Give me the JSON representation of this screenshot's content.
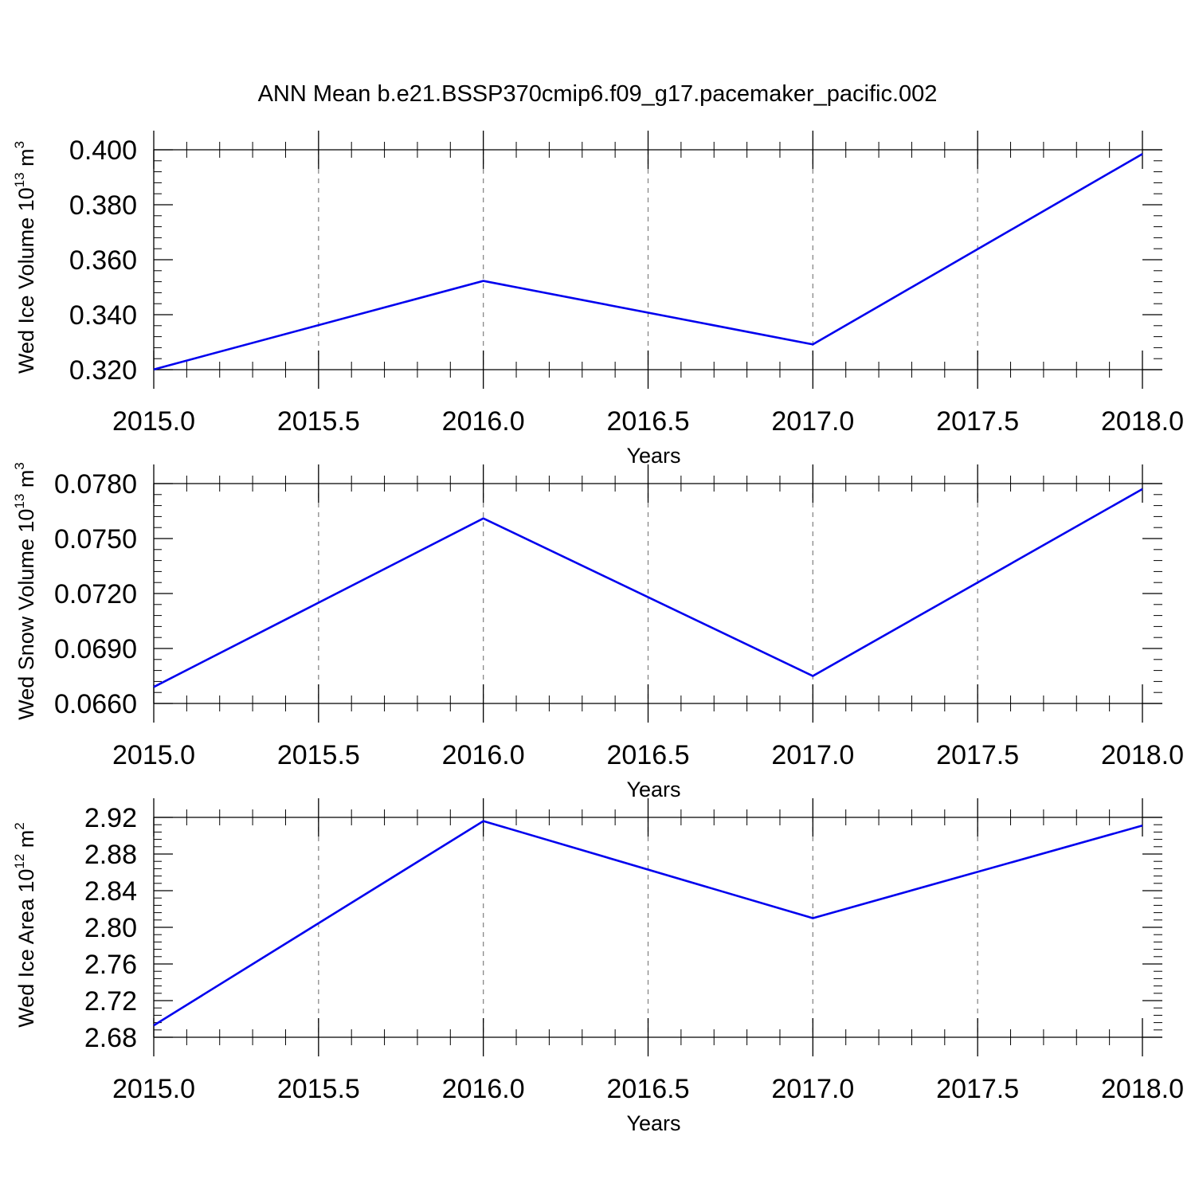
{
  "figure": {
    "title": "ANN Mean b.e21.BSSP370cmip6.f09_g17.pacemaker_pacific.002"
  },
  "chart_data": [
    {
      "type": "line",
      "title": "",
      "xlabel": "Years",
      "ylabel": {
        "text": "Wed Ice Volume 10",
        "exp": "13",
        "unit": " m",
        "unit_exp": "3"
      },
      "xlim": [
        2015.0,
        2018.0
      ],
      "ylim": [
        0.32,
        0.4
      ],
      "xticks": [
        2015.0,
        2015.5,
        2016.0,
        2016.5,
        2017.0,
        2017.5,
        2018.0
      ],
      "xtick_labels": [
        "2015.0",
        "2015.5",
        "2016.0",
        "2016.5",
        "2017.0",
        "2017.5",
        "2018.0"
      ],
      "yticks": [
        0.32,
        0.34,
        0.36,
        0.38,
        0.4
      ],
      "ytick_labels": [
        "0.320",
        "0.340",
        "0.360",
        "0.380",
        "0.400"
      ],
      "y_minor_step": 0.004,
      "grid": "vertical dashed",
      "series": [
        {
          "color": "#0000ee",
          "x": [
            2015,
            2016,
            2017,
            2018
          ],
          "y": [
            0.3201,
            0.3523,
            0.3292,
            0.3985
          ]
        }
      ]
    },
    {
      "type": "line",
      "title": "",
      "xlabel": "Years",
      "ylabel": {
        "text": "Wed Snow Volume 10",
        "exp": "13",
        "unit": " m",
        "unit_exp": "3"
      },
      "xlim": [
        2015.0,
        2018.0
      ],
      "ylim": [
        0.066,
        0.078
      ],
      "xticks": [
        2015.0,
        2015.5,
        2016.0,
        2016.5,
        2017.0,
        2017.5,
        2018.0
      ],
      "xtick_labels": [
        "2015.0",
        "2015.5",
        "2016.0",
        "2016.5",
        "2017.0",
        "2017.5",
        "2018.0"
      ],
      "yticks": [
        0.066,
        0.069,
        0.072,
        0.075,
        0.078
      ],
      "ytick_labels": [
        "0.0660",
        "0.0690",
        "0.0720",
        "0.0750",
        "0.0780"
      ],
      "y_minor_step": 0.0006,
      "grid": "vertical dashed",
      "series": [
        {
          "color": "#0000ee",
          "x": [
            2015,
            2016,
            2017,
            2018
          ],
          "y": [
            0.0669,
            0.0761,
            0.0675,
            0.0777
          ]
        }
      ]
    },
    {
      "type": "line",
      "title": "",
      "xlabel": "Years",
      "ylabel": {
        "text": "Wed Ice Area 10",
        "exp": "12",
        "unit": " m",
        "unit_exp": "2"
      },
      "xlim": [
        2015.0,
        2018.0
      ],
      "ylim": [
        2.68,
        2.92
      ],
      "xticks": [
        2015.0,
        2015.5,
        2016.0,
        2016.5,
        2017.0,
        2017.5,
        2018.0
      ],
      "xtick_labels": [
        "2015.0",
        "2015.5",
        "2016.0",
        "2016.5",
        "2017.0",
        "2017.5",
        "2018.0"
      ],
      "yticks": [
        2.68,
        2.72,
        2.76,
        2.8,
        2.84,
        2.88,
        2.92
      ],
      "ytick_labels": [
        "2.68",
        "2.72",
        "2.76",
        "2.80",
        "2.84",
        "2.88",
        "2.92"
      ],
      "y_minor_step": 0.008,
      "grid": "vertical dashed",
      "series": [
        {
          "color": "#0000ee",
          "x": [
            2015,
            2016,
            2017,
            2018
          ],
          "y": [
            2.693,
            2.916,
            2.81,
            2.911
          ]
        }
      ]
    }
  ]
}
